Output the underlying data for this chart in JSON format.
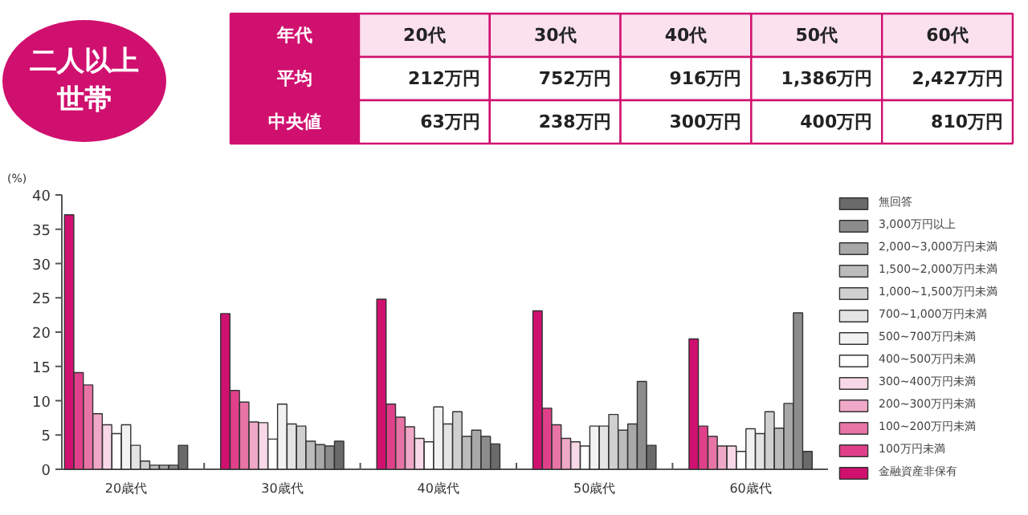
{
  "chart_data": {
    "type": "bar",
    "title": "二人以上世帯",
    "ylabel": "(%)",
    "annotations": [
      "年代",
      "20代",
      "30代",
      "40代",
      "50代",
      "60代",
      "平均",
      "212万円",
      "752万円",
      "916万円",
      "1,386万円",
      "2,427万円",
      "中央値",
      "63万円",
      "238万円",
      "300万円",
      "400万円",
      "810万円"
    ],
    "categories": [
      "20歳代",
      "30歳代",
      "40歳代",
      "50歳代",
      "60歳代"
    ],
    "series": [
      {
        "name": "金融資産非保有",
        "color": "#d0106f",
        "values": [
          37.1,
          22.7,
          24.8,
          23.1,
          19.0
        ]
      },
      {
        "name": "100万円未満",
        "color": "#e0408a",
        "values": [
          14.1,
          11.5,
          9.5,
          8.9,
          6.3
        ]
      },
      {
        "name": "100~200万円未満",
        "color": "#e874a6",
        "values": [
          12.3,
          9.8,
          7.6,
          6.5,
          4.8
        ]
      },
      {
        "name": "200~300万円未満",
        "color": "#f0a8c8",
        "values": [
          8.1,
          6.9,
          6.2,
          4.5,
          3.4
        ]
      },
      {
        "name": "300~400万円未満",
        "color": "#f8d8e6",
        "values": [
          6.5,
          6.8,
          4.5,
          4.0,
          3.4
        ]
      },
      {
        "name": "400~500万円未満",
        "color": "#ffffff",
        "values": [
          5.2,
          4.4,
          4.0,
          3.4,
          2.6
        ]
      },
      {
        "name": "500~700万円未満",
        "color": "#f2f2f2",
        "values": [
          6.5,
          9.5,
          9.1,
          6.3,
          5.9
        ]
      },
      {
        "name": "700~1,000万円未満",
        "color": "#e4e4e4",
        "values": [
          3.5,
          6.6,
          6.6,
          6.3,
          5.2
        ]
      },
      {
        "name": "1,000~1,500万円未満",
        "color": "#d0d0d0",
        "values": [
          1.2,
          6.3,
          8.4,
          8.0,
          8.4
        ]
      },
      {
        "name": "1,500~2,000万円未満",
        "color": "#bcbcbc",
        "values": [
          0.6,
          4.1,
          4.8,
          5.7,
          6.0
        ]
      },
      {
        "name": "2,000~3,000万円未満",
        "color": "#a8a8a8",
        "values": [
          0.6,
          3.6,
          5.7,
          6.6,
          9.6
        ]
      },
      {
        "name": "3,000万円以上",
        "color": "#8c8c8c",
        "values": [
          0.6,
          3.4,
          4.8,
          12.8,
          22.8
        ]
      },
      {
        "name": "無回答",
        "color": "#6a6a6a",
        "values": [
          3.5,
          4.1,
          3.7,
          3.5,
          2.6
        ]
      }
    ],
    "ylim": [
      0,
      40
    ],
    "yticks": [
      0,
      5,
      10,
      15,
      20,
      25,
      30,
      35,
      40
    ],
    "grid": false,
    "legend": "right"
  }
}
